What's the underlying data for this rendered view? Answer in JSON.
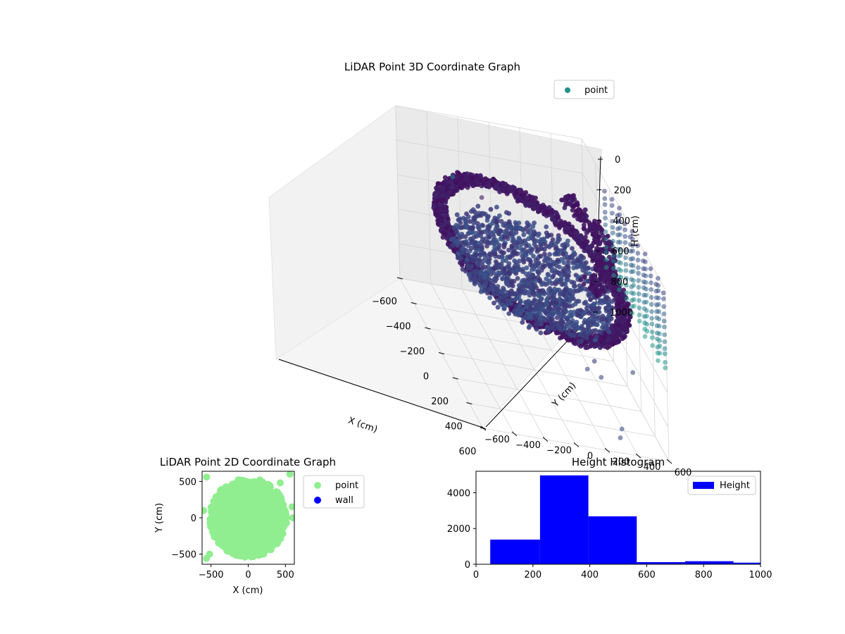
{
  "chart_data": [
    {
      "type": "scatter",
      "title": "LiDAR Point 3D Coordinate Graph",
      "projection": "3d",
      "xlabel": "X (cm)",
      "ylabel": "Y (cm)",
      "zlabel": "H (cm)",
      "xlim": [
        -600,
        600
      ],
      "ylim": [
        -600,
        600
      ],
      "zlim": [
        1000,
        0
      ],
      "z_axis_inverted": true,
      "xticks": [
        "−600",
        "−400",
        "−200",
        "0",
        "200",
        "400",
        "600"
      ],
      "yticks": [
        "−600",
        "−400",
        "−200",
        "0",
        "200",
        "400",
        "600"
      ],
      "zticks": [
        "0",
        "200",
        "400",
        "600",
        "800",
        "1000"
      ],
      "grid": true,
      "legend": {
        "placement": "top-right",
        "entries": [
          "point"
        ]
      },
      "colormap": [
        "#440154",
        "#3b528b",
        "#21918c",
        "#5ec962"
      ],
      "legend_color": "#21918c",
      "series": [
        {
          "name": "point",
          "description_values": "approx. 10000 LiDAR returns forming a bowl-shaped surface of radius ~550 cm at heights 250–600 cm plus sparse columns to +600 cm"
        }
      ]
    },
    {
      "type": "scatter",
      "title": "LiDAR Point 2D Coordinate Graph",
      "xlabel": "X (cm)",
      "ylabel": "Y (cm)",
      "xlim": [
        -620,
        620
      ],
      "ylim": [
        -640,
        640
      ],
      "xticks": [
        "−500",
        "0",
        "500"
      ],
      "yticks": [
        "−500",
        "0",
        "500"
      ],
      "legend": {
        "placement": "outside-right",
        "entries": [
          "point",
          "wall"
        ]
      },
      "series": [
        {
          "name": "point",
          "color": "#90ee90"
        },
        {
          "name": "wall",
          "color": "#0000ff"
        }
      ]
    },
    {
      "type": "bar",
      "title": "Height Histogram",
      "xlim": [
        0,
        1000
      ],
      "ylim": [
        0,
        5200
      ],
      "xticks": [
        "0",
        "200",
        "400",
        "600",
        "800",
        "1000"
      ],
      "yticks": [
        "0",
        "2000",
        "4000"
      ],
      "legend": {
        "placement": "top-right",
        "entries": [
          "Height"
        ]
      },
      "color": "#0000ff",
      "bins": [
        {
          "x0": 50,
          "x1": 225,
          "count": 1380
        },
        {
          "x0": 225,
          "x1": 395,
          "count": 4970
        },
        {
          "x0": 395,
          "x1": 565,
          "count": 2680
        },
        {
          "x0": 565,
          "x1": 735,
          "count": 120
        },
        {
          "x0": 735,
          "x1": 905,
          "count": 170
        },
        {
          "x0": 905,
          "x1": 1000,
          "count": 90
        }
      ],
      "series": [
        {
          "name": "Height"
        }
      ]
    }
  ]
}
